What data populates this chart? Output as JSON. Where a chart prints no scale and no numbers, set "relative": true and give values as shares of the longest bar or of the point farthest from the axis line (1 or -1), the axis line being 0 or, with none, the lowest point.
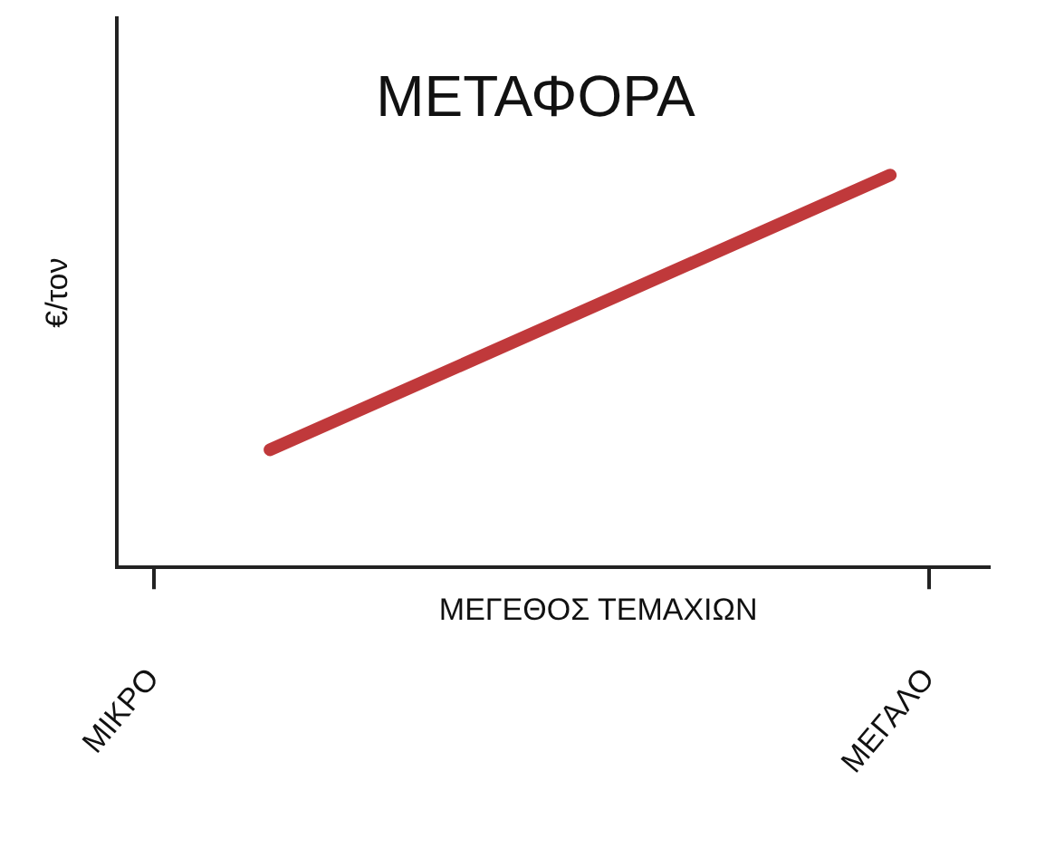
{
  "chart_data": {
    "type": "line",
    "title": "ΜΕΤΑΦΟΡΑ",
    "xlabel": "ΜΕΓΕΘΟΣ ΤΕΜΑΧΙΩΝ",
    "ylabel": "€/τον",
    "relative": true,
    "categories": [
      "ΜΙΚΡΟ",
      null,
      null,
      null,
      null,
      null,
      null,
      null,
      null,
      null,
      null,
      null,
      null,
      null,
      null,
      null,
      null,
      null,
      null,
      null,
      "ΜΕΓΑΛΟ"
    ],
    "series": [
      {
        "color": "#c0393b",
        "values": [
          null,
          null,
          null,
          0.3,
          null,
          null,
          null,
          null,
          null,
          null,
          null,
          null,
          null,
          null,
          null,
          null,
          null,
          null,
          null,
          1,
          null
        ]
      }
    ],
    "grid": false,
    "legend": false,
    "marker": "none",
    "line_style": "solid"
  }
}
